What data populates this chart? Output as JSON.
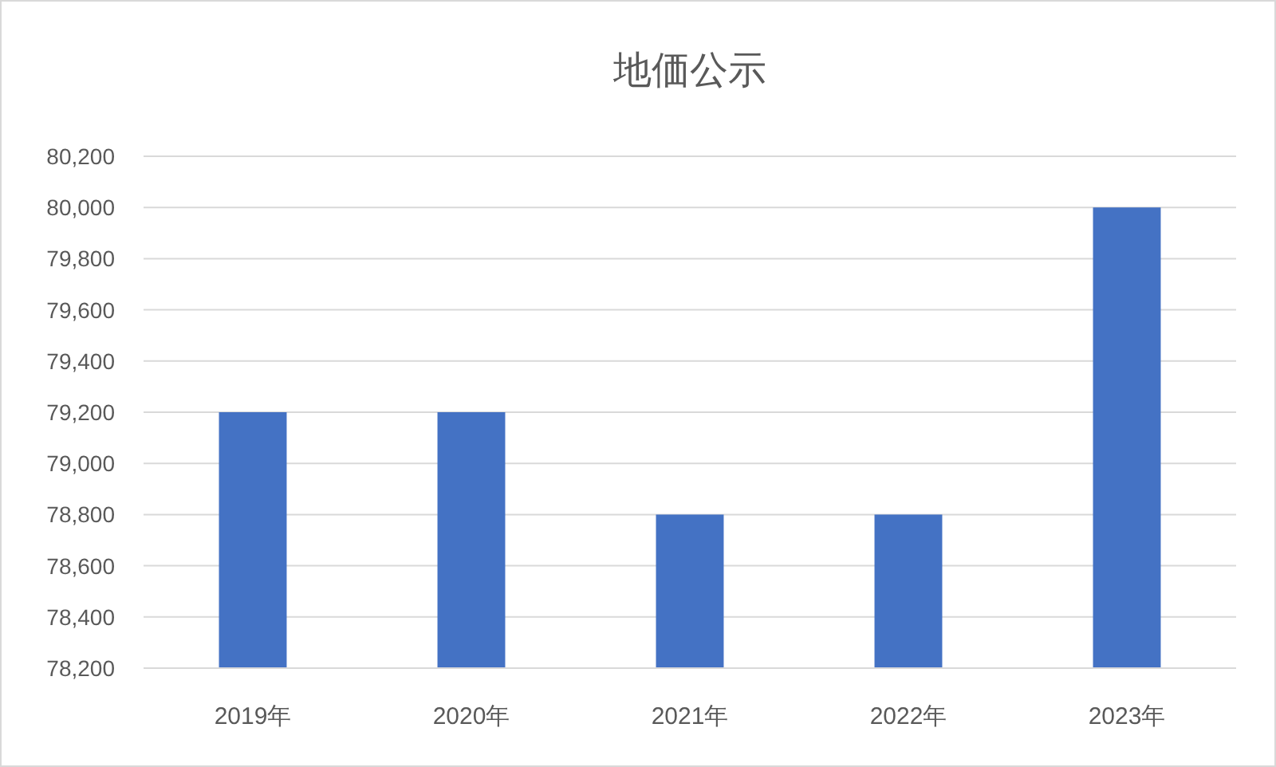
{
  "chart_data": {
    "type": "bar",
    "title": "地価公示",
    "categories": [
      "2019年",
      "2020年",
      "2021年",
      "2022年",
      "2023年"
    ],
    "values": [
      79200,
      79200,
      78800,
      78800,
      80000
    ],
    "color": "#4472c4",
    "ylim": [
      78200,
      80200
    ],
    "yticks": [
      {
        "value": 78200,
        "label": "78,200"
      },
      {
        "value": 78400,
        "label": "78,400"
      },
      {
        "value": 78600,
        "label": "78,600"
      },
      {
        "value": 78800,
        "label": "78,800"
      },
      {
        "value": 79000,
        "label": "79,000"
      },
      {
        "value": 79200,
        "label": "79,200"
      },
      {
        "value": 79400,
        "label": "79,400"
      },
      {
        "value": 79600,
        "label": "79,600"
      },
      {
        "value": 79800,
        "label": "79,800"
      },
      {
        "value": 80000,
        "label": "80,000"
      },
      {
        "value": 80200,
        "label": "80,200"
      }
    ],
    "grid": "y"
  }
}
